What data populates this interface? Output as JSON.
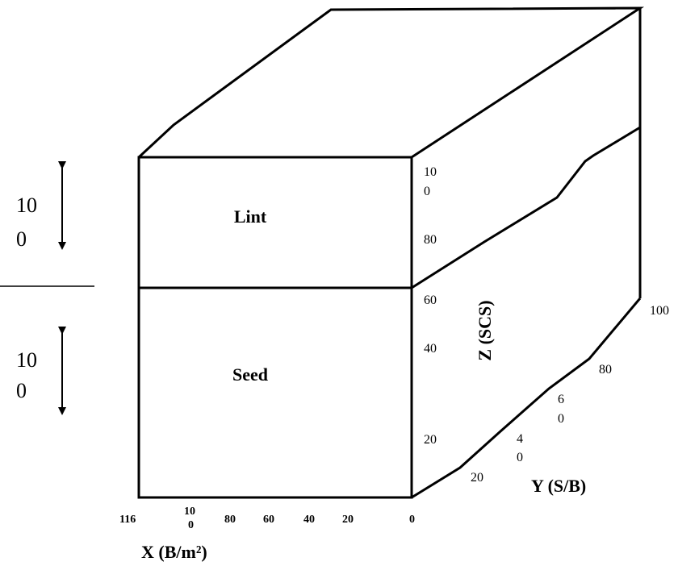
{
  "left_labels": [
    [
      "10",
      "0"
    ],
    [
      "10",
      "0"
    ]
  ],
  "sections": [
    "Lint",
    "Seed"
  ],
  "z_axis": {
    "label": "Z (SCS)",
    "ticks": [
      [
        "10",
        "0"
      ],
      "80",
      "60",
      "40",
      "20"
    ]
  },
  "y_axis": {
    "label": "Y (S/B)",
    "ticks": [
      "20",
      [
        "4",
        "0"
      ],
      [
        "6",
        "0"
      ],
      "80",
      "100"
    ]
  },
  "x_axis": {
    "label": "X (B/m²)",
    "ticks": [
      "116",
      [
        "10",
        "0"
      ],
      "80",
      "60",
      "40",
      "20",
      "0"
    ]
  }
}
